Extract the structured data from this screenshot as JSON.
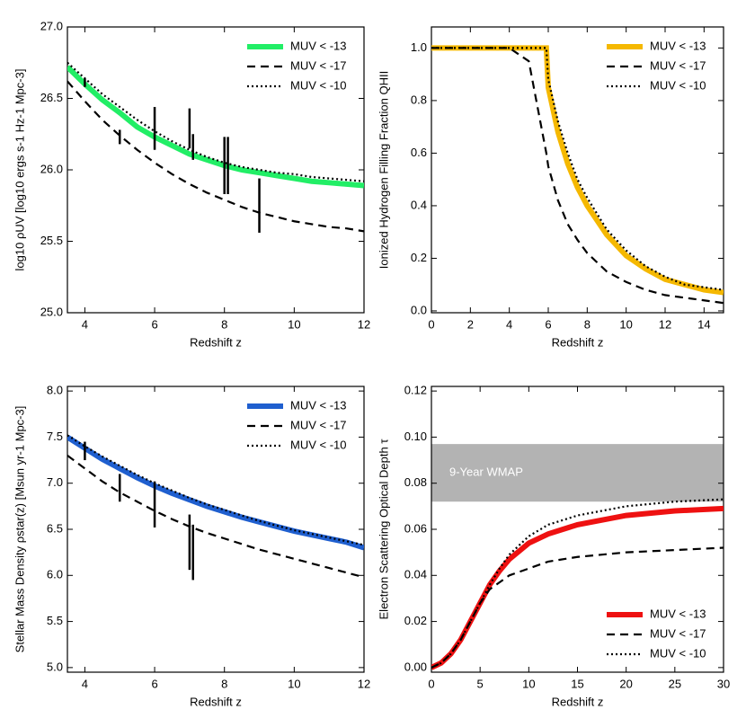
{
  "chart_data": [
    {
      "type": "line",
      "x_label": "Redshift z",
      "y_label": "log10 ρUV [log10 ergs s-1 Hz-1 Mpc-3]",
      "xlim": [
        3.5,
        12
      ],
      "xticks": [
        4,
        6,
        8,
        10,
        12
      ],
      "ylim": [
        25,
        27
      ],
      "yticks": [
        {
          "value": 25,
          "label": "25.0"
        },
        {
          "value": 25.5,
          "label": "25.5"
        },
        {
          "value": 26,
          "label": "26.0"
        },
        {
          "value": 26.5,
          "label": "26.5"
        },
        {
          "value": 27,
          "label": "27.0"
        }
      ],
      "legend": "top-right",
      "x": [
        3.5,
        4,
        4.5,
        5,
        5.5,
        6,
        6.5,
        7,
        7.5,
        8,
        8.5,
        9,
        9.5,
        10,
        10.5,
        11,
        11.5,
        12
      ],
      "series": [
        {
          "name": "MUV < -13",
          "color": "#22ee66",
          "style": "solid",
          "values": [
            26.72,
            26.6,
            26.49,
            26.4,
            26.3,
            26.23,
            26.17,
            26.11,
            26.07,
            26.03,
            26.0,
            25.98,
            25.96,
            25.94,
            25.92,
            25.91,
            25.9,
            25.89
          ]
        },
        {
          "name": "MUV < -17",
          "color": "#000000",
          "style": "dashed",
          "values": [
            26.62,
            26.48,
            26.35,
            26.24,
            26.14,
            26.05,
            25.97,
            25.9,
            25.84,
            25.79,
            25.74,
            25.7,
            25.67,
            25.64,
            25.62,
            25.6,
            25.59,
            25.57
          ]
        },
        {
          "name": "MUV < -10",
          "color": "#000000",
          "style": "dotted",
          "values": [
            26.75,
            26.64,
            26.53,
            26.44,
            26.35,
            26.27,
            26.2,
            26.14,
            26.09,
            26.05,
            26.02,
            26.0,
            25.98,
            25.97,
            25.95,
            25.94,
            25.93,
            25.92
          ]
        }
      ],
      "points": {
        "x": [
          4,
          5,
          6,
          7,
          7.1,
          8,
          8.1,
          9
        ],
        "values": [
          26.61,
          26.23,
          26.29,
          26.29,
          26.16,
          26.03,
          26.03,
          25.75
        ],
        "errors": [
          0.03,
          0.05,
          0.15,
          0.14,
          0.09,
          0.2,
          0.2,
          0.19
        ]
      }
    },
    {
      "type": "line",
      "x_label": "Redshift z",
      "y_label": "Ionized Hydrogen Filling Fraction QHII",
      "xlim": [
        0,
        15
      ],
      "xticks": [
        0,
        2,
        4,
        6,
        8,
        10,
        12,
        14
      ],
      "ylim": [
        -0.007,
        1.08
      ],
      "yticks": [
        {
          "value": 0,
          "label": "0.0"
        },
        0.2,
        0.4,
        0.6,
        0.8,
        {
          "value": 1,
          "label": "1.0"
        }
      ],
      "legend": "top-right",
      "x": [
        0,
        1,
        2,
        3,
        4,
        5,
        5.9,
        6,
        6.5,
        7,
        7.5,
        8,
        9,
        10,
        11,
        12,
        13,
        14,
        15
      ],
      "series": [
        {
          "name": "MUV < -13",
          "color": "#f5b800",
          "style": "solid",
          "values": [
            1,
            1,
            1,
            1,
            1,
            1,
            1,
            0.85,
            0.68,
            0.56,
            0.47,
            0.4,
            0.29,
            0.21,
            0.16,
            0.12,
            0.1,
            0.08,
            0.07
          ]
        },
        {
          "name": "MUV < -17",
          "color": "#000000",
          "style": "dashed",
          "values": [
            1,
            1,
            1,
            1,
            1,
            0.95,
            0.6,
            0.55,
            0.42,
            0.33,
            0.27,
            0.22,
            0.15,
            0.11,
            0.08,
            0.06,
            0.05,
            0.04,
            0.03
          ]
        },
        {
          "name": "MUV < -10",
          "color": "#000000",
          "style": "dotted",
          "values": [
            1,
            1,
            1,
            1,
            1,
            1,
            1,
            0.88,
            0.72,
            0.6,
            0.5,
            0.43,
            0.31,
            0.23,
            0.17,
            0.13,
            0.1,
            0.09,
            0.08
          ]
        }
      ]
    },
    {
      "type": "line",
      "x_label": "Redshift z",
      "y_label": "Stellar Mass Density ρstar(z) [Msun yr-1 Mpc-3]",
      "xlim": [
        3.5,
        12
      ],
      "xticks": [
        4,
        6,
        8,
        10,
        12
      ],
      "ylim": [
        4.95,
        8.05
      ],
      "yticks": [
        {
          "value": 5,
          "label": "5.0"
        },
        5.5,
        {
          "value": 6,
          "label": "6.0"
        },
        6.5,
        {
          "value": 7,
          "label": "7.0"
        },
        7.5,
        {
          "value": 8,
          "label": "8.0"
        }
      ],
      "legend": "top-right",
      "x": [
        3.5,
        4,
        4.5,
        5,
        5.5,
        6,
        6.5,
        7,
        7.5,
        8,
        8.5,
        9,
        9.5,
        10,
        10.5,
        11,
        11.5,
        12
      ],
      "series": [
        {
          "name": "MUV < -13",
          "color": "#1f5fcf",
          "style": "solid",
          "values": [
            7.5,
            7.38,
            7.26,
            7.16,
            7.06,
            6.97,
            6.89,
            6.82,
            6.75,
            6.69,
            6.63,
            6.58,
            6.53,
            6.48,
            6.44,
            6.4,
            6.36,
            6.3
          ]
        },
        {
          "name": "MUV < -17",
          "color": "#000000",
          "style": "dashed",
          "values": [
            7.3,
            7.16,
            7.02,
            6.9,
            6.8,
            6.7,
            6.61,
            6.53,
            6.46,
            6.4,
            6.34,
            6.28,
            6.23,
            6.18,
            6.13,
            6.08,
            6.03,
            5.98
          ]
        },
        {
          "name": "MUV < -10",
          "color": "#000000",
          "style": "dotted",
          "values": [
            7.52,
            7.4,
            7.29,
            7.19,
            7.09,
            7.0,
            6.92,
            6.84,
            6.77,
            6.71,
            6.65,
            6.59,
            6.54,
            6.49,
            6.45,
            6.41,
            6.37,
            6.33
          ]
        }
      ],
      "points": {
        "x": [
          4,
          5,
          6,
          7,
          7.1
        ],
        "values": [
          7.35,
          6.95,
          6.77,
          6.36,
          6.25
        ],
        "errors": [
          0.1,
          0.15,
          0.25,
          0.3,
          0.3
        ]
      }
    },
    {
      "type": "line",
      "x_label": "Redshift z",
      "y_label": "Electron Scattering Optical Depth τ",
      "xlim": [
        0,
        30
      ],
      "xticks": [
        0,
        5,
        10,
        15,
        20,
        25,
        30
      ],
      "ylim": [
        -0.002,
        0.122
      ],
      "yticks": [
        {
          "value": 0,
          "label": "0.00"
        },
        0.02,
        0.04,
        0.06,
        0.08,
        {
          "value": 0.1,
          "label": "0.10"
        },
        0.12
      ],
      "legend": "bottom-right",
      "band": {
        "label": "9-Year WMAP",
        "color": "#b3b3b3",
        "range": [
          0.072,
          0.097
        ]
      },
      "x": [
        0,
        1,
        2,
        3,
        4,
        5,
        6,
        7,
        8,
        10,
        12,
        15,
        20,
        25,
        30
      ],
      "series": [
        {
          "name": "MUV < -13",
          "color": "#ee1111",
          "style": "solid",
          "values": [
            0,
            0.002,
            0.006,
            0.012,
            0.02,
            0.028,
            0.036,
            0.042,
            0.047,
            0.054,
            0.058,
            0.062,
            0.066,
            0.068,
            0.069
          ]
        },
        {
          "name": "MUV < -17",
          "color": "#000000",
          "style": "dashed",
          "values": [
            0,
            0.002,
            0.006,
            0.012,
            0.02,
            0.028,
            0.034,
            0.037,
            0.04,
            0.043,
            0.046,
            0.048,
            0.05,
            0.051,
            0.052
          ]
        },
        {
          "name": "MUV < -10",
          "color": "#000000",
          "style": "dotted",
          "values": [
            0,
            0.002,
            0.006,
            0.012,
            0.02,
            0.028,
            0.036,
            0.043,
            0.049,
            0.057,
            0.062,
            0.066,
            0.07,
            0.072,
            0.073
          ]
        }
      ]
    }
  ]
}
